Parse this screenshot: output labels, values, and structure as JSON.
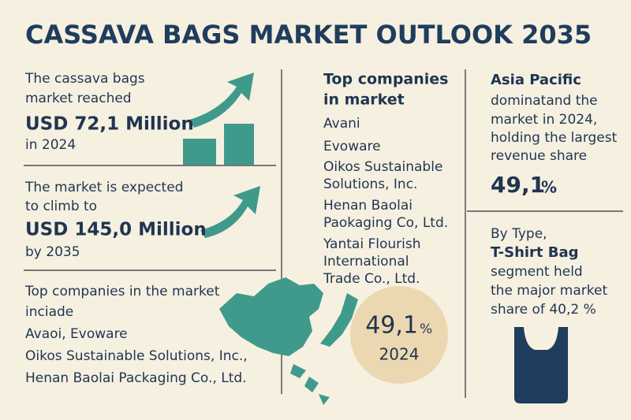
{
  "title": "CASSAVA BAGS MARKET OUTLOOK 2035",
  "market_2024": {
    "intro": [
      "The cassava bags",
      "market reached"
    ],
    "amount": "USD 72,1 Million",
    "year": "in 2024"
  },
  "market_2035": {
    "intro": [
      "The market is expected",
      "to climb to"
    ],
    "amount": "USD 145,0 Million",
    "year": "by 2035"
  },
  "top_companies_summary": {
    "intro": [
      "Top companies in the market",
      "inciade"
    ],
    "companies": [
      "Avaoi, Evoware",
      "Oikos Sustainable Solutions, Inc.,",
      "Henan Baolai Packaging Co., Ltd."
    ]
  },
  "top_companies": {
    "heading": [
      "Top companies",
      "in market"
    ],
    "companies": [
      [
        "Avani"
      ],
      [
        "Evoware"
      ],
      [
        "Oikos Sustainable",
        "Solutions, Inc."
      ],
      [
        "Henan Baolai",
        "Paokaging Co, Ltd."
      ],
      [
        "Yantai Flourish",
        "International",
        "Trade Co., Ltd."
      ]
    ]
  },
  "share_badge": {
    "value": "49,1",
    "unit": "%",
    "year": "2024"
  },
  "region": {
    "name": "Asia Pacific",
    "description": [
      "dominatand the",
      "market in 2024,",
      "holding the largest",
      "revenue share"
    ],
    "share": "49,1",
    "unit": "%"
  },
  "segment": {
    "intro": "By Type,",
    "name": "T-Shirt Bag",
    "description": [
      "segment held",
      "the major market",
      "share of 40,2 %"
    ]
  }
}
